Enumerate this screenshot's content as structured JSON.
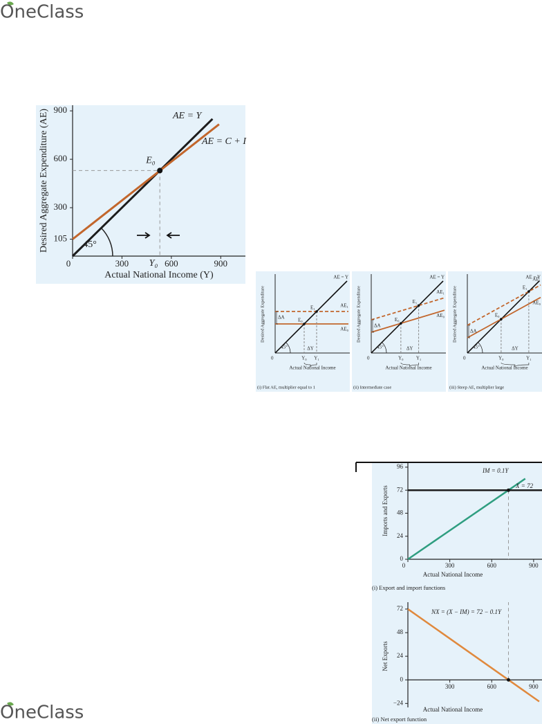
{
  "header": {
    "logo": "OneClass"
  },
  "chart_data": [
    {
      "type": "line",
      "x_label": "Actual National Income (Y)",
      "y_label": "Desired Aggregate Expenditure (AE)",
      "xlim": [
        0,
        1050
      ],
      "ylim": [
        0,
        935
      ],
      "xticks": [
        0,
        300,
        600,
        900
      ],
      "yticks": [
        105,
        300,
        600,
        900
      ],
      "series": [
        {
          "name": "AE = Y",
          "color": "#1c1c1c",
          "x": [
            0,
            850
          ],
          "values": [
            0,
            850
          ]
        },
        {
          "name": "AE = C + I",
          "color": "#c2662c",
          "x": [
            0,
            890
          ],
          "values": [
            105,
            817
          ]
        }
      ],
      "points": [
        {
          "label": "E₀",
          "x": 530,
          "y": 530
        }
      ],
      "annotations": [
        "Y₀",
        "45°"
      ]
    },
    {
      "type": "line",
      "x_label": "Actual National Income",
      "y_label": "Imports and Exports",
      "caption": "(i) Export and import functions",
      "xlim": [
        0,
        960
      ],
      "ylim": [
        0,
        101
      ],
      "xticks": [
        0,
        300,
        600,
        900
      ],
      "yticks": [
        0,
        24,
        48,
        72,
        96
      ],
      "series": [
        {
          "name": "IM = 0.1Y",
          "color": "#2f9e80",
          "x": [
            0,
            840
          ],
          "values": [
            0,
            84
          ]
        },
        {
          "name": "X = 72",
          "color": "#1c1c1c",
          "x": [
            0,
            960
          ],
          "values": [
            72,
            72
          ]
        }
      ],
      "points": [
        {
          "x": 720,
          "y": 72
        }
      ]
    },
    {
      "type": "line",
      "x_label": "Actual National Income",
      "y_label": "Net Exports",
      "caption": "(ii) Net export function",
      "xlim": [
        0,
        960
      ],
      "ylim": [
        -28,
        79
      ],
      "xticks": [
        300,
        600,
        900
      ],
      "yticks": [
        72,
        48,
        24,
        0,
        {
          "value": -24,
          "label": "−24"
        }
      ],
      "series": [
        {
          "name": "NX = (X − IM) = 72 − 0.1Y",
          "color": "#e0893d",
          "x": [
            0,
            940
          ],
          "values": [
            72,
            -22
          ]
        }
      ],
      "points": [
        {
          "x": 720,
          "y": 0
        }
      ]
    }
  ],
  "figures": {
    "panels": [
      {
        "y_label": "Desired Aggregate Expenditure",
        "x_label": "Actual National Income",
        "caption": "(i) Flat AE, multiplier equal to 1",
        "origin": "0",
        "ae_y": "AE = Y",
        "ae_1": "AE₁",
        "ae_0": "AE₀",
        "e_0": "E₀",
        "e_1": "E₁",
        "delta_a": "ΔA",
        "delta_y": "ΔY",
        "y_0": "Y₀",
        "y_1": "Y₁",
        "angle": "45°"
      },
      {
        "y_label": "Desired Aggregate Expenditure",
        "x_label": "Actual National Income",
        "caption": "(ii) Intermediate case",
        "origin": "0",
        "ae_y": "AE = Y",
        "ae_1": "AE₁",
        "ae_0": "AE₀",
        "e_0": "E₀",
        "e_1": "E₁",
        "delta_a": "ΔA",
        "delta_y": "ΔY",
        "y_0": "Y₀",
        "y_1": "Y₁",
        "angle": "45°"
      },
      {
        "y_label": "Desired Aggregate Expenditure",
        "x_label": "Actual National Income",
        "caption": "(iii) Steep AE, multiplier large",
        "origin": "0",
        "ae_y": "AE = Y",
        "ae_1": "AE₁",
        "ae_0": "AE₀",
        "e_0": "E₀",
        "e_1": "E₁",
        "delta_a": "ΔA",
        "delta_y": "ΔY",
        "y_0": "Y₀",
        "y_1": "Y₁",
        "angle": "45°"
      }
    ]
  },
  "footer": {
    "logo": "OneClass"
  }
}
